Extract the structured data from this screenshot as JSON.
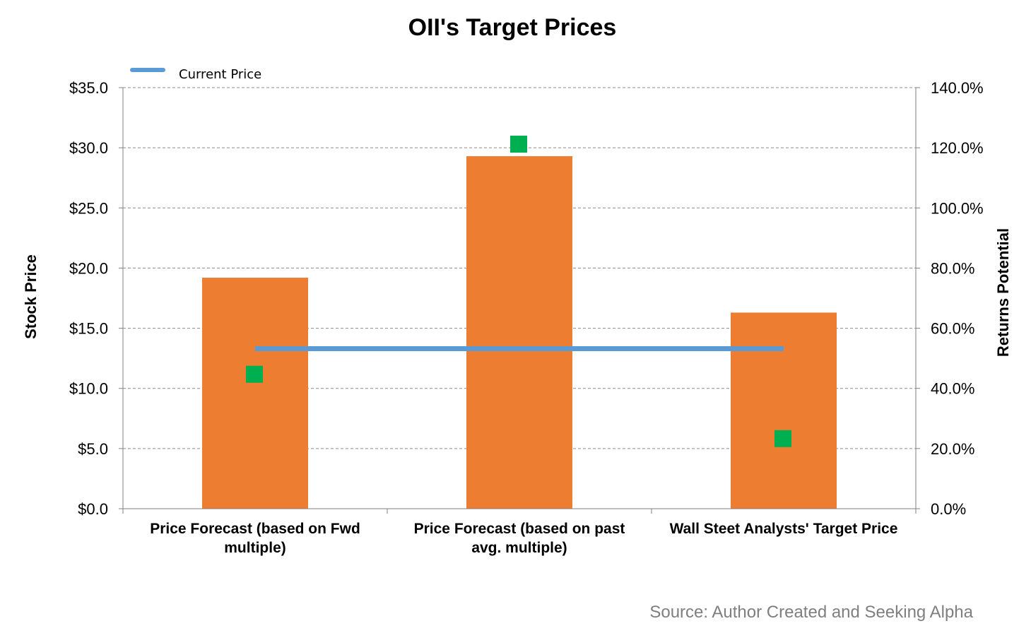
{
  "chart_data": {
    "type": "bar",
    "title": "OII's Target Prices",
    "ylabel": "Stock Price",
    "y2label": "Returns Potential",
    "ylim": [
      0,
      35
    ],
    "y2lim": [
      0,
      140
    ],
    "y_ticks": [
      "$0.0",
      "$5.0",
      "$10.0",
      "$15.0",
      "$20.0",
      "$25.0",
      "$30.0",
      "$35.0"
    ],
    "y2_ticks": [
      "0.0%",
      "20.0%",
      "40.0%",
      "60.0%",
      "80.0%",
      "100.0%",
      "120.0%",
      "140.0%"
    ],
    "categories": [
      [
        "Price Forecast (based on Fwd",
        "multiple)"
      ],
      [
        "Price Forecast (based on past",
        "avg. multiple)"
      ],
      [
        "Wall Steet Analysts' Target Price"
      ]
    ],
    "series": [
      {
        "values": [
          19.2,
          29.3,
          16.3
        ],
        "color": "#ED7D31",
        "axis": "left",
        "kind": "bar"
      },
      {
        "name": "Current Price",
        "values": [
          13.3,
          13.3,
          13.3
        ],
        "color": "#5B9BD5",
        "axis": "left",
        "kind": "line"
      },
      {
        "values": [
          44.7,
          121.2,
          23.3
        ],
        "color": "#00B050",
        "axis": "right",
        "kind": "marker"
      }
    ],
    "grid": true,
    "legend_position": "top-left"
  },
  "source_note": "Source: Author Created and Seeking Alpha"
}
